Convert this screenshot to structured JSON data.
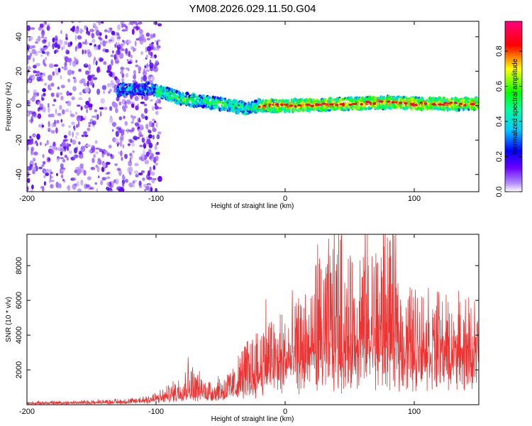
{
  "title": "YM08.2026.029.11.50.G04",
  "chart_data": [
    {
      "type": "heatmap",
      "name": "spectrogram",
      "xlabel": "Height of straight line (km)",
      "ylabel": "Frequency (Hz)",
      "xlim": [
        -200,
        150
      ],
      "ylim": [
        -50,
        49
      ],
      "xticks": [
        -200,
        -100,
        0,
        100
      ],
      "yticks": [
        -40,
        -20,
        0,
        20,
        40
      ],
      "colorbar": {
        "label": "Normalized spectral amplitude",
        "range": [
          0,
          0.97
        ],
        "ticks": [
          0.0,
          0.2,
          0.4,
          0.6,
          0.8
        ],
        "colormap": [
          "#ffffff",
          "#6a00ff",
          "#0000ff",
          "#00ffff",
          "#00ff00",
          "#ffff00",
          "#ff0000",
          "#ff0080"
        ]
      },
      "ridge": {
        "description": "dominant signal band centred near 0 Hz",
        "center_hz": [
          [
            -130,
            9
          ],
          [
            -105,
            10
          ],
          [
            -80,
            4
          ],
          [
            -60,
            2
          ],
          [
            -40,
            0
          ],
          [
            -30,
            -2
          ],
          [
            -20,
            0
          ],
          [
            0,
            0
          ],
          [
            50,
            1
          ],
          [
            80,
            2
          ],
          [
            100,
            1
          ],
          [
            150,
            1
          ]
        ],
        "peak_amplitude_region_km": [
          -20,
          150
        ]
      },
      "noise_region_km": [
        -200,
        -100
      ]
    },
    {
      "type": "line",
      "name": "snr",
      "xlabel": "Height of straight line (km)",
      "ylabel": "SNR (10 * v/v)",
      "xlim": [
        -200,
        150
      ],
      "ylim": [
        0,
        9800
      ],
      "xticks": [
        -200,
        -100,
        0,
        100
      ],
      "yticks": [
        2000,
        4000,
        6000,
        8000
      ],
      "color": "#ee3333",
      "series": [
        {
          "name": "SNR",
          "envelope_x": [
            -200,
            -150,
            -120,
            -100,
            -90,
            -80,
            -75,
            -70,
            -60,
            -50,
            -40,
            -30,
            -20,
            -15,
            -10,
            0,
            10,
            20,
            25,
            30,
            40,
            50,
            60,
            70,
            80,
            90,
            100,
            110,
            120,
            130,
            140,
            150
          ],
          "envelope_y": [
            150,
            220,
            300,
            600,
            900,
            1600,
            2400,
            1700,
            1300,
            1400,
            1800,
            3200,
            3800,
            5600,
            4000,
            4400,
            4800,
            5400,
            8200,
            6700,
            9800,
            6500,
            9000,
            7900,
            9800,
            5600,
            5000,
            4800,
            4400,
            4200,
            4300,
            4000
          ],
          "baseline_y": [
            80,
            120,
            160,
            300,
            450,
            700,
            900,
            700,
            600,
            700,
            900,
            1500,
            1700,
            2000,
            2200,
            2400,
            2600,
            2900,
            3100,
            3200,
            3000,
            3200,
            3300,
            3300,
            3400,
            3300,
            3400,
            3500,
            3500,
            3400,
            3400,
            3300
          ]
        }
      ]
    }
  ]
}
